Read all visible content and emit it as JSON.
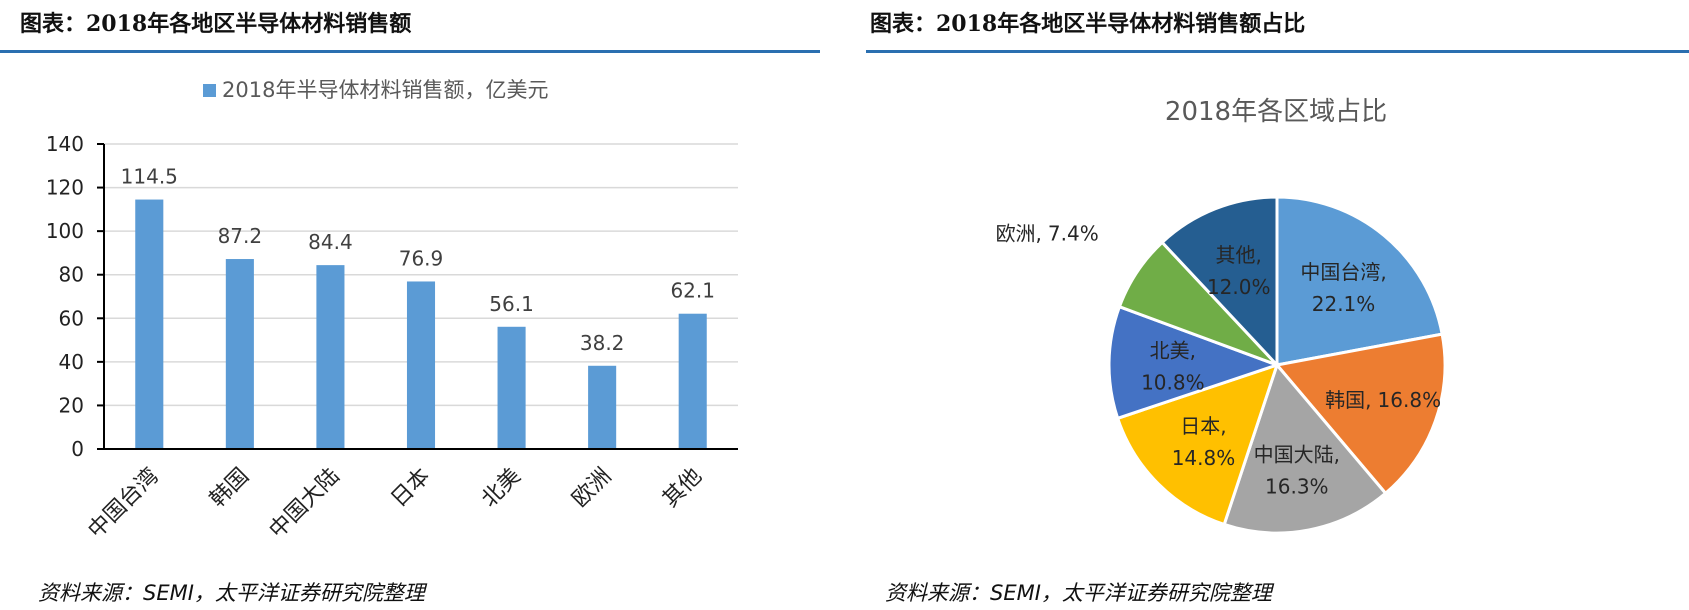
{
  "left_panel": {
    "title": "图表：2018年各地区半导体材料销售额",
    "source": "资料来源：SEMI，太平洋证券研究院整理"
  },
  "right_panel": {
    "title": "图表：2018年各地区半导体材料销售额占比",
    "source": "资料来源：SEMI，太平洋证券研究院整理"
  },
  "accent_color": "#2a6fb0",
  "chart_data": [
    {
      "type": "bar",
      "title": "",
      "legend": "2018年半导体材料销售额，亿美元",
      "legend_position": "top",
      "categories": [
        "中国台湾",
        "韩国",
        "中国大陆",
        "日本",
        "北美",
        "欧洲",
        "其他"
      ],
      "values": [
        114.5,
        87.2,
        84.4,
        76.9,
        56.1,
        38.2,
        62.1
      ],
      "value_labels": [
        "114.5",
        "87.2",
        "84.4",
        "76.9",
        "56.1",
        "38.2",
        "62.1"
      ],
      "yticks": [
        "0",
        "20",
        "40",
        "60",
        "80",
        "100",
        "120",
        "140"
      ],
      "ylim": [
        0,
        140
      ],
      "grid": true,
      "bar_color": "#5b9bd5"
    },
    {
      "type": "pie",
      "title": "2018年各区域占比",
      "slices": [
        {
          "name": "中国台湾",
          "value": 22.1,
          "label_name": "中国台湾,",
          "label_pct": "22.1%",
          "color": "#5b9bd5"
        },
        {
          "name": "韩国",
          "value": 16.8,
          "label_name": "韩国,",
          "label_pct": "16.8%",
          "color": "#ed7d31"
        },
        {
          "name": "中国大陆",
          "value": 16.3,
          "label_name": "中国大陆,",
          "label_pct": "16.3%",
          "color": "#a5a5a5"
        },
        {
          "name": "日本",
          "value": 14.8,
          "label_name": "日本,",
          "label_pct": "14.8%",
          "color": "#ffc000"
        },
        {
          "name": "北美",
          "value": 10.8,
          "label_name": "北美,",
          "label_pct": "10.8%",
          "color": "#4472c4"
        },
        {
          "name": "欧洲",
          "value": 7.4,
          "label_name": "欧洲,",
          "label_pct": "7.4%",
          "color": "#70ad47"
        },
        {
          "name": "其他",
          "value": 12.0,
          "label_name": "其他,",
          "label_pct": "12.0%",
          "color": "#255e91"
        }
      ]
    }
  ]
}
